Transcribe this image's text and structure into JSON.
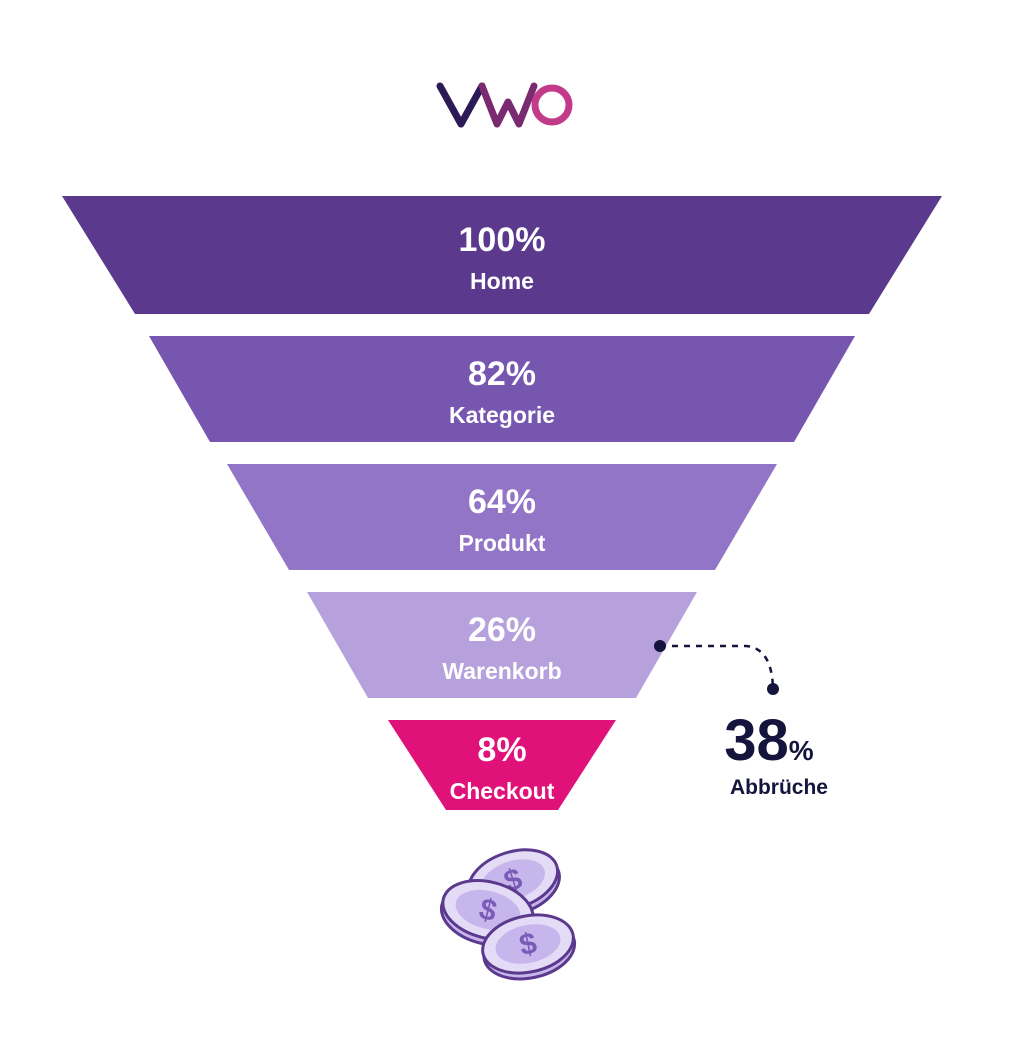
{
  "logo": {
    "text": "VWO",
    "colors": [
      "#2b1a55",
      "#7a2a6e",
      "#c23a8a"
    ]
  },
  "chart_data": {
    "type": "funnel",
    "title": "",
    "stages": [
      {
        "label": "Home",
        "value": 100,
        "value_label": "100%",
        "color": "#5b3a8e",
        "text_color": "#ffffff"
      },
      {
        "label": "Kategorie",
        "value": 82,
        "value_label": "82%",
        "color": "#7756b0",
        "text_color": "#ffffff"
      },
      {
        "label": "Produkt",
        "value": 64,
        "value_label": "64%",
        "color": "#9375c7",
        "text_color": "#ffffff"
      },
      {
        "label": "Warenkorb",
        "value": 26,
        "value_label": "26%",
        "color": "#b7a1dd",
        "text_color": "#ffffff"
      },
      {
        "label": "Checkout",
        "value": 8,
        "value_label": "8%",
        "color": "#e0127a",
        "text_color": "#ffffff"
      }
    ],
    "annotation": {
      "value": "38",
      "unit": "%",
      "label": "Abbrüche",
      "from_stage": "Warenkorb",
      "color": "#14143c"
    }
  },
  "decoration": {
    "icon": "coins-icon",
    "coin_glyph": "$",
    "coin_fill": "#e4dbf6",
    "coin_stroke": "#5b3a8e",
    "coin_face": "#c7b6ec"
  }
}
